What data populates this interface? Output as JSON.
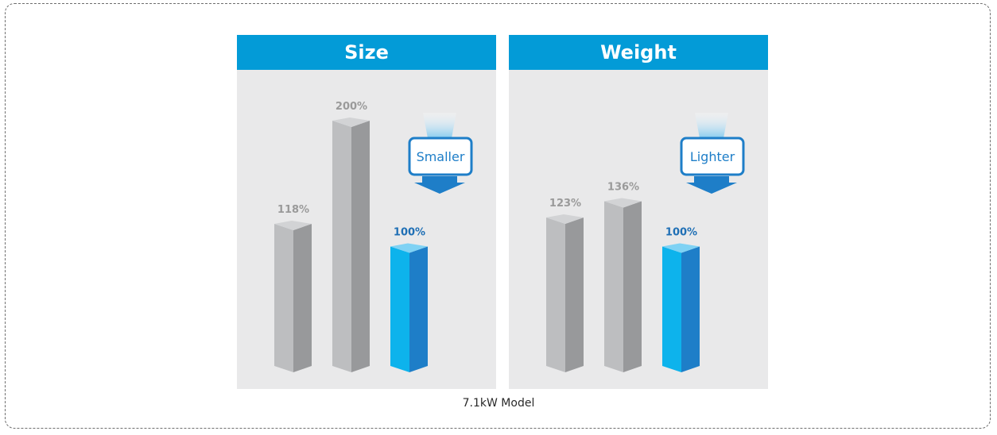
{
  "chart_data": [
    {
      "type": "bar",
      "title": "Size",
      "values": [
        118,
        200,
        100
      ],
      "value_labels": [
        "118%",
        "200%",
        "100%"
      ],
      "highlight_index": 2,
      "callout": "Smaller",
      "ylim": [
        0,
        220
      ]
    },
    {
      "type": "bar",
      "title": "Weight",
      "values": [
        123,
        136,
        100
      ],
      "value_labels": [
        "123%",
        "136%",
        "100%"
      ],
      "highlight_index": 2,
      "callout": "Lighter",
      "ylim": [
        0,
        220
      ]
    }
  ],
  "caption": "7.1kW Model",
  "colors": {
    "header": "#039bd7",
    "panel_bg": "#e9e9ea",
    "gray_front": "#bdbec0",
    "gray_side": "#98999b",
    "gray_top": "#d2d3d5",
    "blue_front": "#0db3ec",
    "blue_side": "#1e7ec8",
    "blue_top": "#7fd2f4",
    "gray_label": "#9a9a9a",
    "blue_label": "#1f6fb5",
    "callout_blue": "#1e7ec8"
  }
}
